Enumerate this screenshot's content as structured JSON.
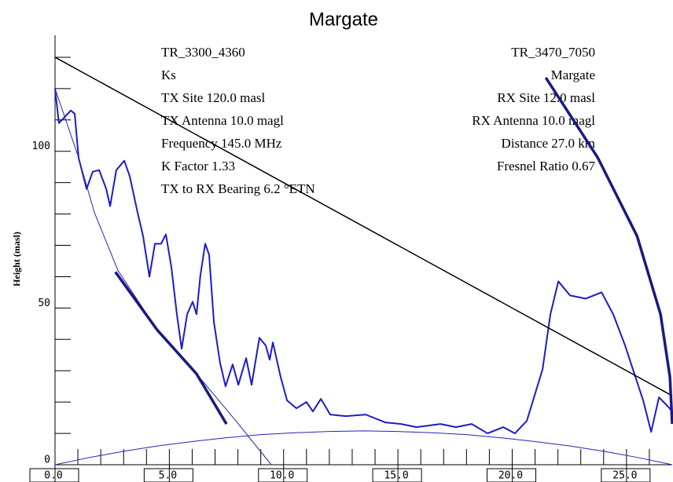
{
  "chart_data": {
    "type": "line",
    "title": "Margate",
    "y_label": "Height (masl)",
    "info_left": [
      "TR_3300_4360",
      "Ks",
      "TX Site  120.0 masl",
      "TX Antenna  10.0 magl",
      "Frequency  145.0 MHz",
      "K Factor  1.33",
      "TX to RX Bearing    6.2 °ETN"
    ],
    "info_right": [
      "TR_3470_7050",
      "Margate",
      "RX Site  12.0 masl",
      "RX Antenna  10.0 magl",
      "Distance  27.0 km",
      "Fresnel Ratio  0.67"
    ],
    "xlim": [
      0,
      27
    ],
    "ylim": [
      0,
      137
    ],
    "xticks": [
      {
        "value": 0,
        "label": "0.0"
      },
      {
        "value": 5,
        "label": "5.0"
      },
      {
        "value": 10,
        "label": "10.0"
      },
      {
        "value": 15,
        "label": "15.0"
      },
      {
        "value": 20,
        "label": "20.0"
      },
      {
        "value": 25,
        "label": "25.0"
      }
    ],
    "yticks": [
      0,
      50,
      100
    ],
    "xminorticks": [
      1,
      2,
      3,
      4,
      6,
      7,
      8,
      9,
      11,
      12,
      13,
      14,
      16,
      17,
      18,
      19,
      21,
      22,
      23,
      24,
      26
    ],
    "yminorticks": [
      10,
      20,
      30,
      40,
      60,
      70,
      80,
      90,
      110,
      120,
      130
    ],
    "series": [
      {
        "color": "#1c1cc8",
        "width": 2,
        "x": [
          0,
          0.17,
          0.69,
          0.86,
          1.03,
          1.38,
          1.65,
          1.93,
          2.24,
          2.41,
          2.68,
          3.03,
          3.27,
          3.61,
          3.85,
          4.13,
          4.37,
          4.64,
          4.85,
          5.09,
          5.33,
          5.54,
          5.78,
          6.02,
          6.19,
          6.36,
          6.57,
          6.74,
          6.95,
          7.22,
          7.46,
          7.77,
          8.02,
          8.36,
          8.6,
          8.94,
          9.22,
          9.39,
          9.53,
          9.87,
          10.15,
          10.56,
          11.0,
          11.28,
          11.63,
          12.04,
          12.73,
          13.59,
          14.45,
          15.14,
          15.82,
          16.86,
          17.54,
          18.23,
          18.92,
          19.61,
          20.12,
          20.64,
          21.33,
          21.67,
          22.02,
          22.53,
          23.22,
          23.91,
          24.42,
          24.94,
          25.39,
          25.73,
          26.08,
          26.42,
          26.76,
          27
        ],
        "values": [
          120,
          109,
          113,
          112,
          98,
          88,
          93.5,
          94,
          88,
          82.5,
          94,
          97,
          92,
          80.5,
          73,
          60,
          70.5,
          70.5,
          73.5,
          63,
          48,
          37,
          48,
          52,
          48,
          60.5,
          70.5,
          67,
          45.5,
          32.5,
          25,
          32,
          25.5,
          34,
          25.5,
          40.5,
          38,
          33.5,
          39,
          28,
          20.5,
          18,
          20,
          17,
          21,
          16,
          15.5,
          16,
          13.5,
          13,
          12,
          13,
          12,
          13,
          10,
          12,
          10,
          14,
          30.5,
          48,
          58.5,
          54,
          53,
          55,
          48,
          38,
          28,
          20.5,
          10.5,
          21.5,
          19,
          17
        ]
      },
      {
        "color": "#000000",
        "width": 1.5,
        "x": [
          0,
          27
        ],
        "values": [
          130,
          22
        ]
      },
      {
        "color": "#2424b4",
        "width": 1,
        "x": [
          0,
          1.5,
          3,
          4.5,
          6,
          7.5,
          9,
          10.5,
          12,
          13.5,
          15,
          16.5,
          18,
          19.5,
          21,
          22.5,
          24,
          25.5,
          27
        ],
        "values": [
          0,
          2.3,
          4.3,
          6.0,
          7.4,
          8.6,
          9.6,
          10.2,
          10.6,
          10.8,
          10.6,
          10.2,
          9.6,
          8.6,
          7.4,
          6.0,
          4.3,
          2.3,
          0
        ]
      },
      {
        "color": "#2424b4",
        "width": 1,
        "x": [
          0,
          1.03,
          1.72,
          2.75,
          4.47,
          6.19,
          7.91,
          9.46
        ],
        "values": [
          120,
          98,
          80.5,
          62,
          43,
          29,
          14,
          0
        ]
      },
      {
        "color": "#1a1a80",
        "width": 3.5,
        "x": [
          2.64,
          4.47,
          6.19,
          7.5
        ],
        "values": [
          61.5,
          43,
          29,
          13
        ]
      },
      {
        "color": "#1a1a80",
        "width": 3.5,
        "x": [
          21.47,
          23.74,
          25.46,
          26.49,
          26.9,
          27
        ],
        "values": [
          123.5,
          98,
          73,
          48,
          28,
          13
        ]
      }
    ]
  }
}
